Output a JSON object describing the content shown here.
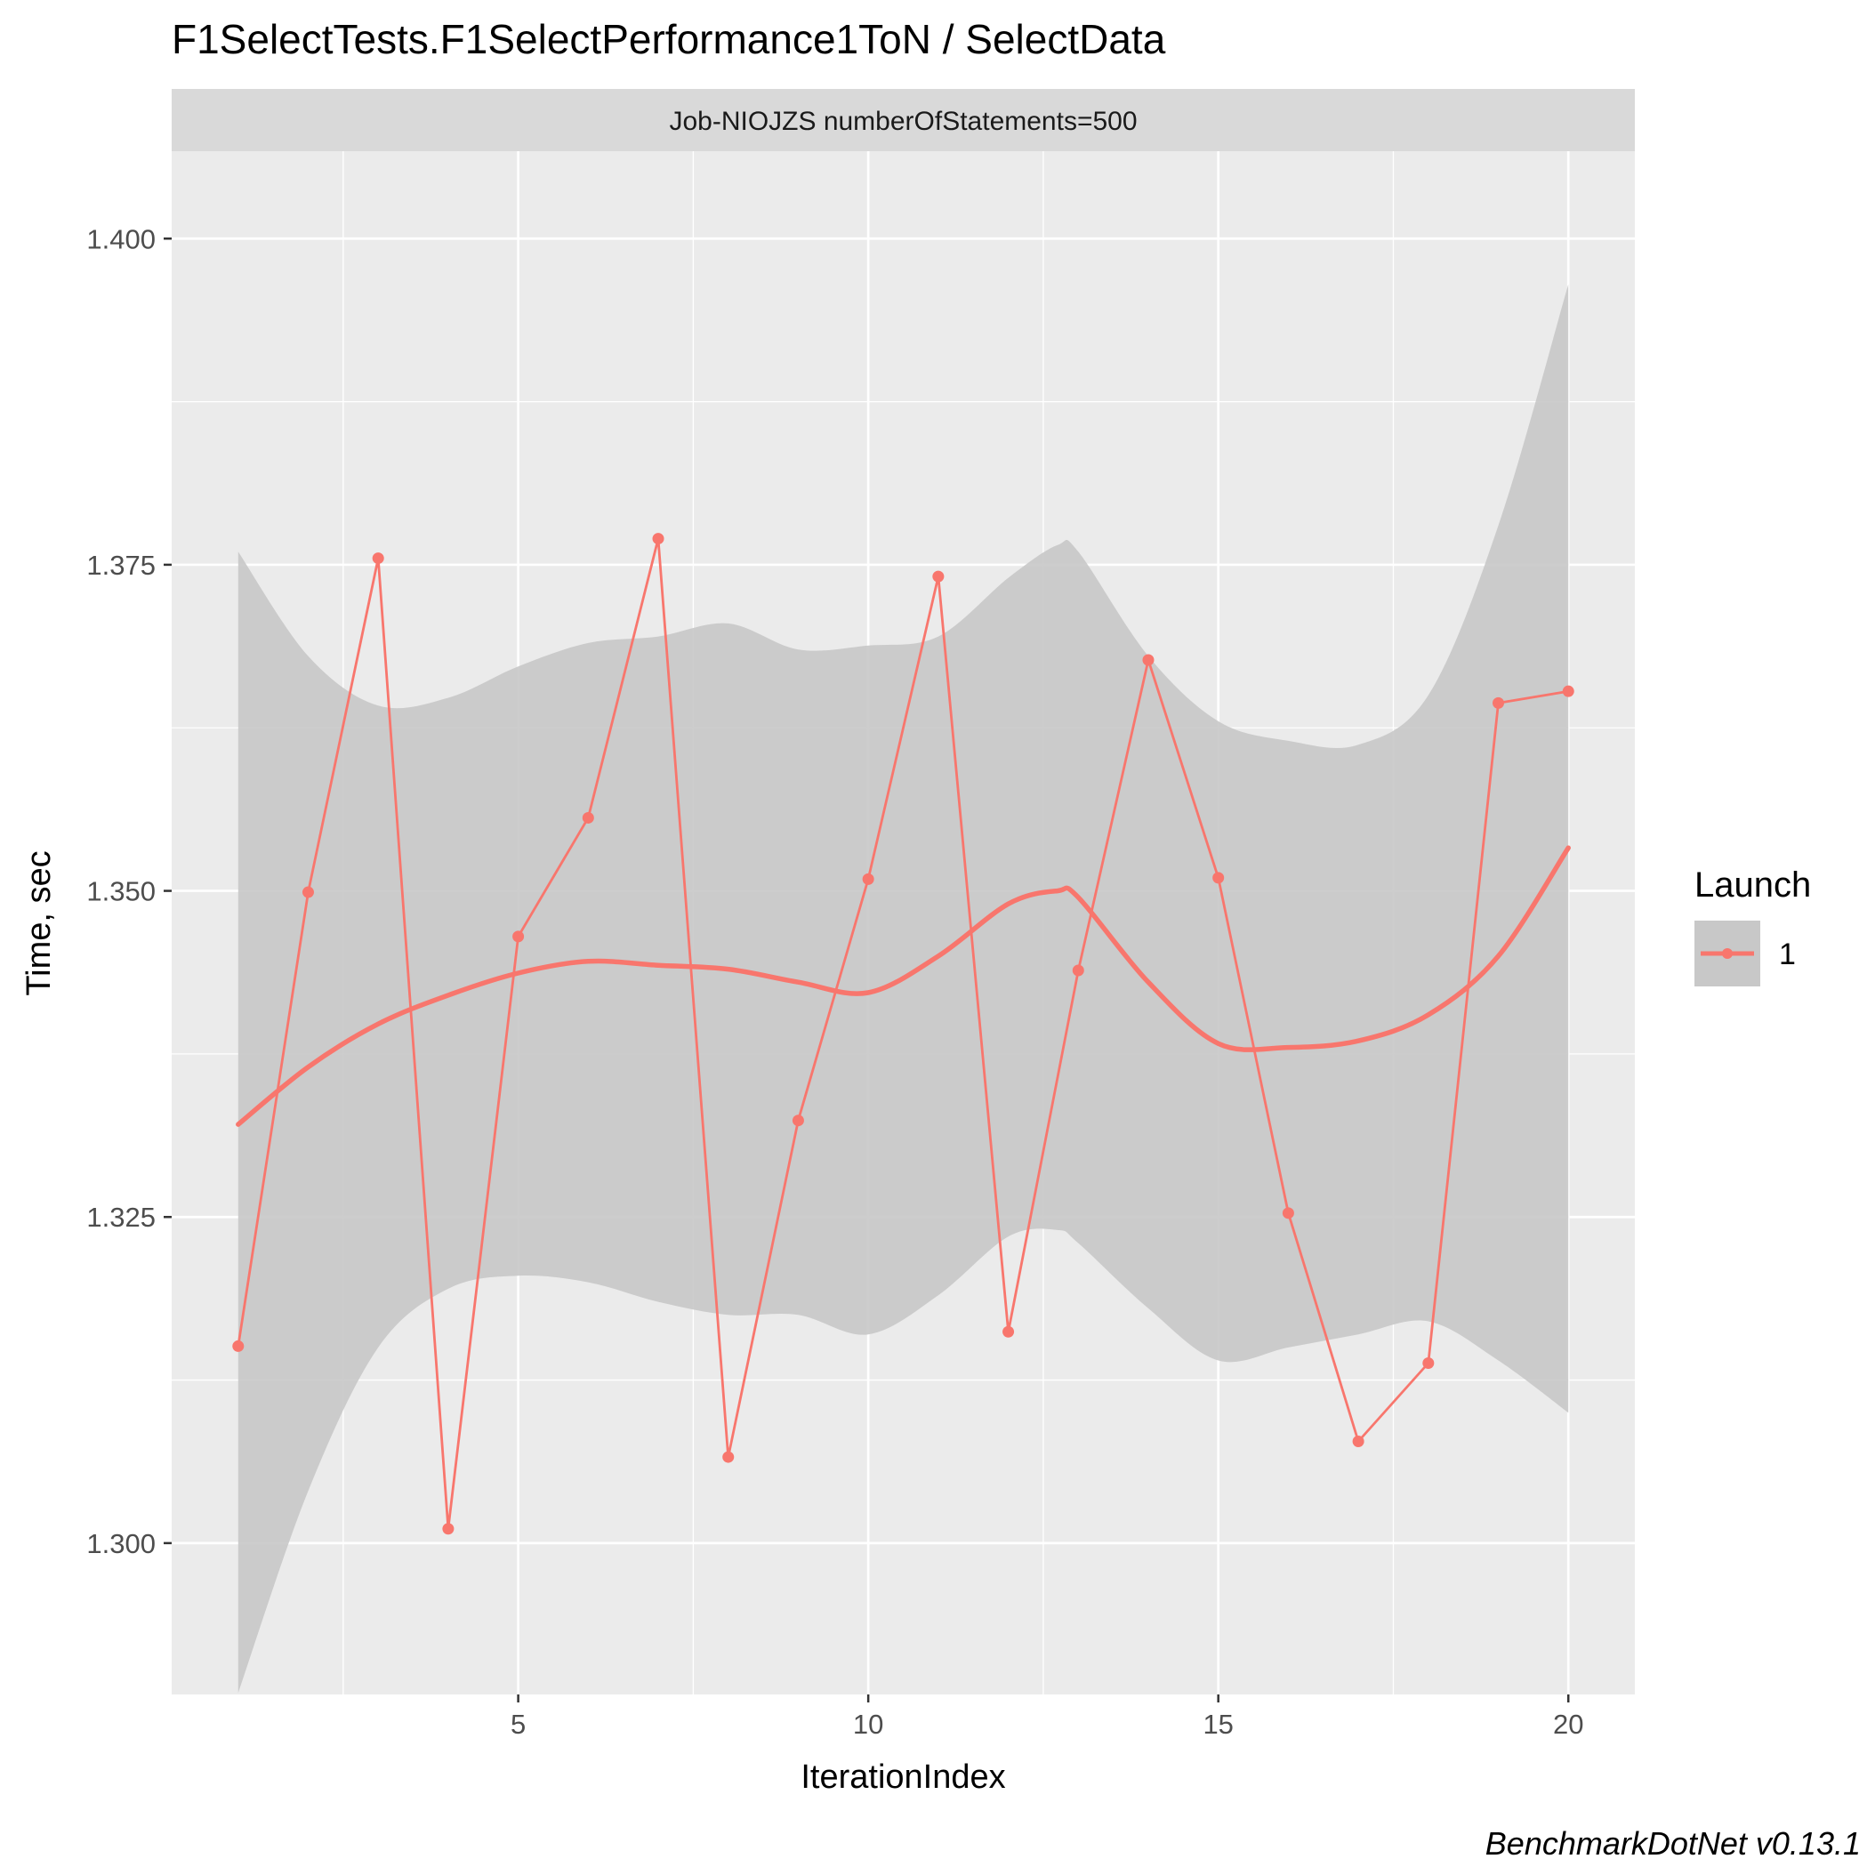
{
  "chart_data": {
    "type": "line",
    "title": "F1SelectTests.F1SelectPerformance1ToN / SelectData",
    "facet_label": "Job-NIOJZS numberOfStatements=500",
    "xlabel": "IterationIndex",
    "ylabel": "Time, sec",
    "xlim": [
      0.05,
      20.95
    ],
    "ylim": [
      1.2884,
      1.4067
    ],
    "x_ticks": [
      5,
      10,
      15,
      20
    ],
    "x_tick_labels": [
      "5",
      "10",
      "15",
      "20"
    ],
    "y_ticks": [
      1.3,
      1.325,
      1.35,
      1.375,
      1.4
    ],
    "y_tick_labels": [
      "1.300",
      "1.325",
      "1.350",
      "1.375",
      "1.400"
    ],
    "grid": true,
    "legend": {
      "title": "Launch",
      "position": "right",
      "entries": [
        "1"
      ]
    },
    "colors": {
      "series": "#f8766d",
      "panel_background": "#ebebeb",
      "strip_background": "#d9d9d9",
      "confidence_band": "#c8c8c8"
    },
    "series": [
      {
        "name": "1",
        "x": [
          1,
          2,
          3,
          4,
          5,
          6,
          7,
          8,
          9,
          10,
          11,
          12,
          13,
          14,
          15,
          16,
          17,
          18,
          19,
          20
        ],
        "values": [
          1.3151,
          1.3499,
          1.3755,
          1.3011,
          1.3465,
          1.3556,
          1.377,
          1.3066,
          1.3324,
          1.3509,
          1.3741,
          1.3162,
          1.3439,
          1.3677,
          1.351,
          1.3253,
          1.3078,
          1.3138,
          1.3644,
          1.3653
        ]
      }
    ],
    "smooth": {
      "x": [
        1,
        2,
        3,
        4,
        5,
        6,
        7,
        8,
        9,
        10,
        11,
        12,
        12.7,
        13,
        14,
        15,
        16,
        17,
        18,
        19,
        20
      ],
      "values": [
        1.3321,
        1.3365,
        1.3398,
        1.342,
        1.3437,
        1.3446,
        1.3443,
        1.344,
        1.343,
        1.3422,
        1.345,
        1.349,
        1.35,
        1.3495,
        1.343,
        1.3383,
        1.338,
        1.3385,
        1.3405,
        1.345,
        1.3533
      ],
      "ci_lower": [
        1.2885,
        1.304,
        1.315,
        1.3195,
        1.3205,
        1.32,
        1.3185,
        1.3175,
        1.3175,
        1.316,
        1.319,
        1.3235,
        1.324,
        1.323,
        1.318,
        1.314,
        1.315,
        1.316,
        1.317,
        1.314,
        1.31
      ],
      "ci_upper": [
        1.376,
        1.368,
        1.3642,
        1.3648,
        1.3672,
        1.369,
        1.3695,
        1.3705,
        1.3685,
        1.3688,
        1.3695,
        1.374,
        1.3765,
        1.376,
        1.368,
        1.363,
        1.3615,
        1.3612,
        1.365,
        1.378,
        1.3965
      ]
    },
    "caption": "BenchmarkDotNet v0.13.1"
  }
}
